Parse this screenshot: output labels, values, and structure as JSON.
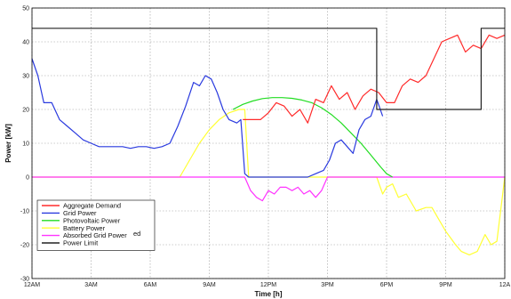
{
  "chart_data": {
    "type": "line",
    "xlabel": "Time [h]",
    "ylabel": "Power [kW]",
    "xlim": [
      0,
      24
    ],
    "ylim": [
      -30,
      50
    ],
    "grid": true,
    "legend_position": "bottom-left",
    "x_ticks": [
      0,
      3,
      6,
      9,
      12,
      15,
      18,
      21,
      24
    ],
    "x_tick_labels": [
      "12AM",
      "3AM",
      "6AM",
      "9AM",
      "12PM",
      "3PM",
      "6PM",
      "9PM",
      "12A"
    ],
    "y_ticks": [
      -30,
      -20,
      -10,
      0,
      10,
      20,
      30,
      40,
      50
    ],
    "y_tick_labels": [
      "-30",
      "-20",
      "-10",
      "0",
      "10",
      "20",
      "30",
      "40",
      "50"
    ],
    "series": [
      {
        "name": "Aggregate Demand",
        "color": "#ff2a2a",
        "x": [
          10.7,
          11.2,
          11.6,
          12.0,
          12.4,
          12.8,
          13.2,
          13.6,
          14.0,
          14.4,
          14.8,
          15.2,
          15.6,
          16.0,
          16.4,
          16.8,
          17.2,
          17.6,
          18.0,
          18.4,
          18.8,
          19.2,
          19.6,
          20.0,
          20.4,
          20.8,
          21.2,
          21.6,
          22.0,
          22.4,
          22.8,
          23.2,
          23.6,
          24.0
        ],
        "y": [
          17,
          17,
          17,
          19,
          22,
          21,
          18,
          20,
          16,
          23,
          22,
          27,
          23,
          25,
          20,
          24,
          26,
          25,
          22,
          22,
          27,
          29,
          28,
          30,
          35,
          40,
          41,
          42,
          37,
          39,
          38,
          42,
          41,
          42
        ]
      },
      {
        "name": "Grid Power",
        "color": "#2a3adf",
        "x": [
          0,
          0.3,
          0.6,
          1.0,
          1.4,
          1.8,
          2.2,
          2.6,
          3.0,
          3.4,
          3.8,
          4.2,
          4.6,
          5.0,
          5.4,
          5.8,
          6.2,
          6.6,
          7.0,
          7.4,
          7.8,
          8.2,
          8.5,
          8.8,
          9.1,
          9.4,
          9.7,
          10.0,
          10.4,
          10.6,
          10.8,
          11.0,
          11.3,
          11.6,
          12.0,
          12.5,
          13.0,
          13.5,
          14.0,
          14.4,
          14.8,
          15.1,
          15.4,
          15.7,
          16.0,
          16.3,
          16.6,
          16.9,
          17.2,
          17.5,
          17.8
        ],
        "y": [
          35,
          30,
          22,
          22,
          17,
          15,
          13,
          11,
          10,
          9,
          9,
          9,
          9,
          8.5,
          9,
          9,
          8.5,
          9,
          10,
          15,
          21,
          28,
          27,
          30,
          29,
          25,
          20,
          17,
          16,
          17,
          1,
          0,
          0,
          0,
          0,
          0,
          0,
          0,
          0,
          1,
          2,
          5,
          10,
          11,
          9,
          7,
          14,
          17,
          18,
          23,
          18
        ]
      },
      {
        "name": "Photovoltaic Power",
        "color": "#22dd22",
        "x": [
          10.2,
          10.7,
          11.2,
          11.7,
          12.2,
          12.7,
          13.2,
          13.7,
          14.2,
          14.7,
          15.2,
          15.7,
          16.2,
          16.7,
          17.2,
          17.7,
          18.0,
          18.3
        ],
        "y": [
          20,
          21.5,
          22.5,
          23.2,
          23.5,
          23.5,
          23.3,
          22.8,
          22,
          20.5,
          18.5,
          16,
          13,
          10,
          6.5,
          3,
          1,
          0
        ]
      },
      {
        "name": "Battery Power",
        "color": "#ffff33",
        "x": [
          0,
          7.5,
          8.0,
          8.5,
          9.0,
          9.5,
          10.0,
          10.5,
          10.8,
          11.0,
          11.5,
          12.0,
          13.0,
          14.0,
          15.0,
          16.0,
          17.0,
          17.5,
          17.8,
          18.0,
          18.3,
          18.6,
          19.0,
          19.5,
          20.0,
          20.3,
          20.6,
          21.0,
          21.5,
          21.8,
          22.2,
          22.6,
          23.0,
          23.3,
          23.6,
          24.0
        ],
        "y": [
          0,
          0,
          5,
          10,
          14,
          17,
          19,
          20,
          20,
          0,
          0,
          0,
          0,
          0,
          0,
          0,
          0,
          0,
          -5,
          -3,
          -2,
          -6,
          -5,
          -10,
          -9,
          -9,
          -12,
          -16,
          -20,
          -22,
          -23,
          -22,
          -17,
          -20,
          -19,
          0
        ]
      },
      {
        "name": "Absorbed Grid Power",
        "color": "#ff33ff",
        "x": [
          0,
          10.8,
          11.1,
          11.4,
          11.7,
          12.0,
          12.3,
          12.6,
          12.9,
          13.2,
          13.5,
          13.8,
          14.1,
          14.4,
          14.7,
          15.0,
          24.0
        ],
        "y": [
          0,
          0,
          -4,
          -6,
          -7,
          -4,
          -5,
          -3,
          -3,
          -4,
          -3,
          -5,
          -4,
          -6,
          -4,
          0,
          0
        ]
      },
      {
        "name": "Power Limit",
        "color": "#222222",
        "x": [
          0,
          17.5,
          17.5,
          22.8,
          22.8,
          24.0
        ],
        "y": [
          44,
          44,
          20,
          20,
          44,
          44
        ]
      }
    ],
    "legend_extra_text": "ed"
  }
}
